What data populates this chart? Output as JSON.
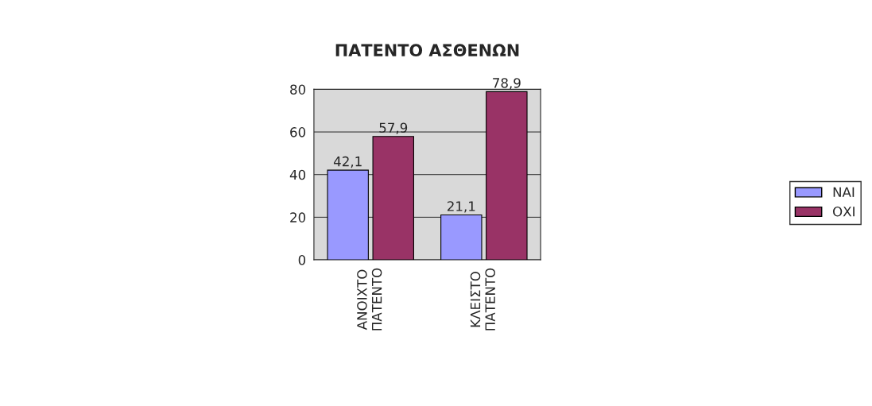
{
  "chart_data": {
    "type": "bar",
    "title": "ΠΑΤΕΝΤΟ ΑΣΘΕΝΩΝ",
    "categories": [
      "ΑΝΟΙΧΤΟ\nΠΑΤΕΝΤΟ",
      "ΚΛΕΙΣΤΟ\nΠΑΤΕΝΤΟ"
    ],
    "series": [
      {
        "name": "ΝΑΙ",
        "color": "#9999ff",
        "values": [
          42.1,
          21.1
        ],
        "value_labels": [
          "42,1",
          "21,1"
        ]
      },
      {
        "name": "ΟΧΙ",
        "color": "#993366",
        "values": [
          57.9,
          78.9
        ],
        "value_labels": [
          "57,9",
          "78,9"
        ]
      }
    ],
    "ylim": [
      0,
      80
    ],
    "yticks": [
      0,
      20,
      40,
      60,
      80
    ],
    "grid": "y",
    "legend": "right"
  }
}
